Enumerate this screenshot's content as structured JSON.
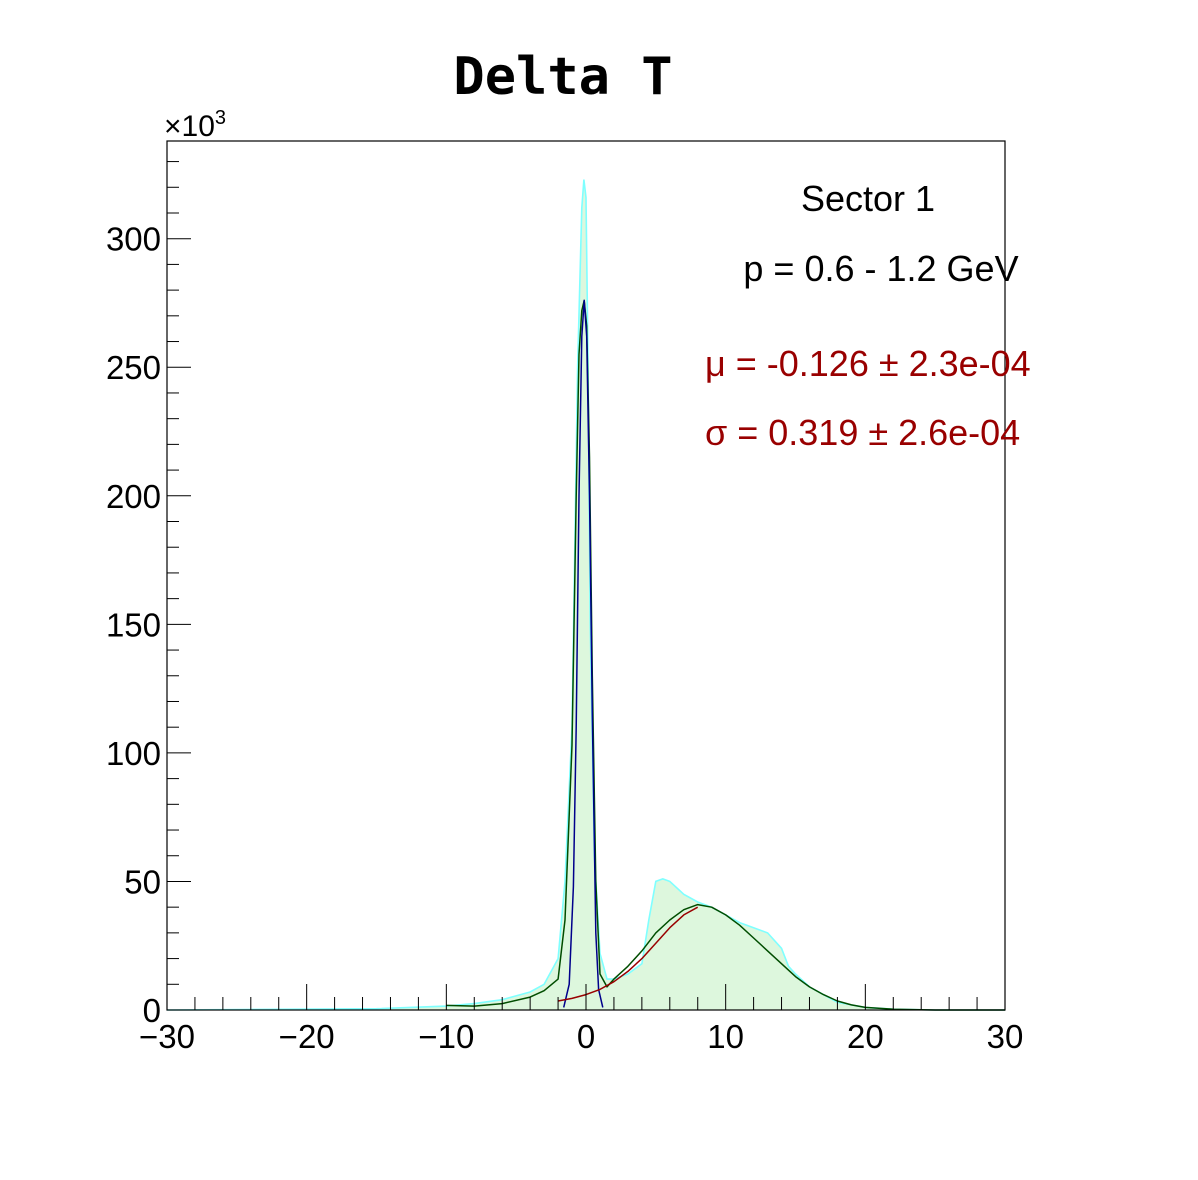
{
  "chart_data": {
    "type": "area",
    "title": "Delta T",
    "xlabel": "",
    "ylabel": "",
    "y_multiplier_label": "×10",
    "y_multiplier_exponent": "3",
    "xlim": [
      -30,
      30
    ],
    "ylim": [
      0,
      338
    ],
    "grid": false,
    "x_ticks": [
      -30,
      -20,
      -10,
      0,
      10,
      20,
      30
    ],
    "x_tick_labels": [
      "−30",
      "−20",
      "−10",
      "0",
      "10",
      "20",
      "30"
    ],
    "y_ticks": [
      0,
      50,
      100,
      150,
      200,
      250,
      300
    ],
    "y_tick_labels": [
      "0",
      "50",
      "100",
      "150",
      "200",
      "250",
      "300"
    ],
    "annotations": {
      "sector": "Sector 1",
      "momentum": "p = 0.6 - 1.2 GeV",
      "mu": "μ = -0.126 ± 2.3e-04",
      "sigma": "σ = 0.319 ± 2.6e-04"
    },
    "colors": {
      "histogram_fill": "#ddf7dd",
      "histogram_line": "#7fffff",
      "total_fit": "#004d00",
      "signal_fit": "#00008b",
      "background_fit": "#990000",
      "fit_text": "#990000"
    },
    "series": [
      {
        "kind": "histogram",
        "x": [
          -30,
          -15,
          -10,
          -8,
          -6,
          -4,
          -3,
          -2,
          -1.5,
          -1,
          -0.6,
          -0.3,
          -0.15,
          0,
          0.15,
          0.3,
          0.6,
          1,
          1.5,
          2,
          3,
          4,
          4.5,
          5,
          5.5,
          6,
          7,
          8,
          9,
          10,
          11,
          12,
          13,
          14,
          14.5,
          15,
          16,
          17,
          18,
          19,
          20,
          22,
          25,
          30
        ],
        "values": [
          0,
          0.5,
          1.5,
          2.5,
          4,
          7,
          10,
          20,
          50,
          110,
          250,
          312,
          323,
          316,
          250,
          150,
          60,
          22,
          12,
          12,
          14,
          18,
          35,
          50,
          51,
          50,
          45,
          42,
          40,
          37,
          34,
          32,
          30,
          24,
          17,
          14,
          9,
          6,
          3,
          2,
          1,
          0.3,
          0,
          0
        ]
      },
      {
        "name": "",
        "kind": "fit_total",
        "x": [
          -10,
          -8,
          -6,
          -4,
          -3,
          -2,
          -1.5,
          -1,
          -0.7,
          -0.5,
          -0.3,
          -0.126,
          0.05,
          0.25,
          0.45,
          0.7,
          1,
          1.5,
          2,
          3,
          4,
          5,
          6,
          7,
          8,
          9,
          10,
          11,
          12,
          13,
          14,
          15,
          16,
          17,
          18,
          19,
          20,
          22,
          25,
          30
        ],
        "values": [
          1.8,
          1.5,
          2.5,
          5,
          7.5,
          12,
          35,
          103,
          200,
          255,
          272,
          276,
          266,
          215,
          130,
          50,
          14,
          9,
          12,
          17,
          23,
          30,
          35,
          39,
          41,
          40,
          37,
          33,
          28,
          23,
          18,
          13,
          9,
          6,
          3.5,
          2,
          1,
          0.3,
          0,
          0
        ]
      },
      {
        "name": "",
        "kind": "fit_signal",
        "x": [
          -1.6,
          -1.2,
          -0.9,
          -0.7,
          -0.5,
          -0.3,
          -0.126,
          0.05,
          0.25,
          0.45,
          0.7,
          0.9,
          1.2
        ],
        "values": [
          1,
          10,
          48,
          110,
          200,
          262,
          276,
          262,
          200,
          115,
          30,
          8,
          1
        ]
      },
      {
        "name": "",
        "kind": "fit_background",
        "x": [
          -2,
          -1,
          0,
          1,
          2,
          3,
          4,
          5,
          6,
          7,
          8
        ],
        "values": [
          3.5,
          4.5,
          6,
          8,
          11,
          15,
          20,
          26,
          32,
          37,
          40
        ]
      }
    ]
  }
}
